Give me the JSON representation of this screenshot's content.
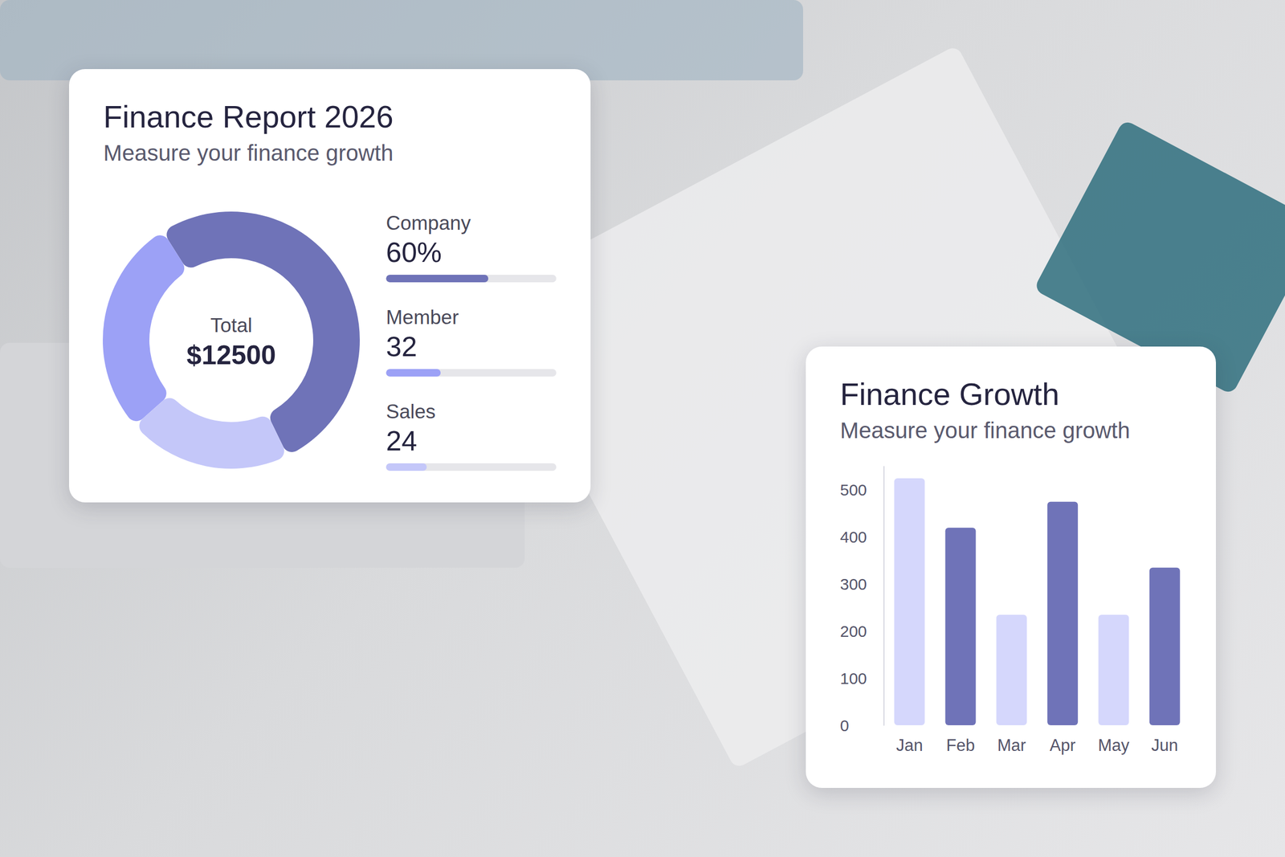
{
  "chart_data": [
    {
      "type": "pie",
      "title": "Finance Report 2026",
      "subtitle": "Measure your finance growth",
      "center_text": "Total",
      "total": {
        "value": 12500,
        "label": "$12500"
      },
      "categories": [
        "Company",
        "Member",
        "Sales"
      ],
      "values": [
        60,
        32,
        24
      ],
      "value_labels": [
        "60%",
        "32",
        "24"
      ],
      "colors": [
        "#6f73b8",
        "#9ca1f6",
        "#c4c7f9"
      ],
      "xlim": [
        0,
        100
      ]
    },
    {
      "type": "bar",
      "title": "Finance Growth",
      "subtitle": "Measure your finance growth",
      "categories": [
        "Jan",
        "Feb",
        "Mar",
        "Apr",
        "May",
        "Jun"
      ],
      "values": [
        525,
        420,
        235,
        475,
        235,
        335
      ],
      "colors": [
        "#d5d7fc",
        "#6f73b8",
        "#d5d7fc",
        "#6f73b8",
        "#d5d7fc",
        "#6f73b8"
      ],
      "ylim": [
        0,
        550
      ],
      "yticks": [
        0,
        100,
        200,
        300,
        400,
        500
      ],
      "grid": false
    }
  ]
}
